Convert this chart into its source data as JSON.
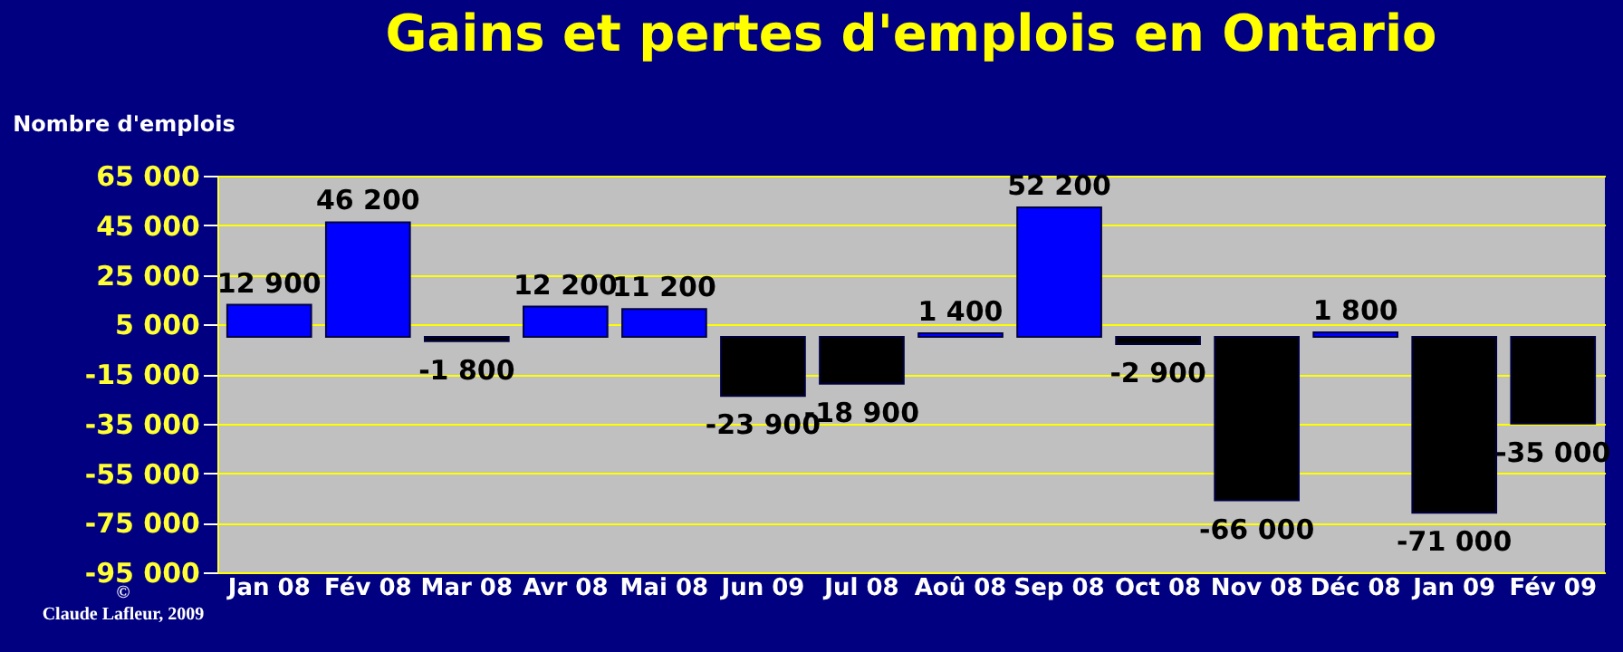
{
  "chart_data": {
    "type": "bar",
    "title": "Gains et pertes d'emplois en Ontario",
    "ylabel": "Nombre d'emplois",
    "categories": [
      "Jan 08",
      "Fév 08",
      "Mar 08",
      "Avr 08",
      "Mai 08",
      "Jun 09",
      "Jul 08",
      "Aoû 08",
      "Sep 08",
      "Oct 08",
      "Nov 08",
      "Déc 08",
      "Jan 09",
      "Fév 09"
    ],
    "values": [
      12900,
      46200,
      -1800,
      12200,
      11200,
      -23900,
      -18900,
      1400,
      52200,
      -2900,
      -66000,
      1800,
      -71000,
      -35000
    ],
    "value_labels": [
      "12 900",
      "46 200",
      "-1 800",
      "12 200",
      "11 200",
      "-23 900",
      "-18 900",
      "1 400",
      "52 200",
      "-2 900",
      "-66 000",
      "1 800",
      "-71 000",
      "-35 000"
    ],
    "colors": [
      "#0000ff",
      "#0000ff",
      "#000000",
      "#0000ff",
      "#0000ff",
      "#000000",
      "#000000",
      "#0000ff",
      "#0000ff",
      "#000000",
      "#000000",
      "#0000ff",
      "#000000",
      "#000000"
    ],
    "ylim": [
      -95000,
      65000
    ],
    "yticks": [
      {
        "value": 65000,
        "label": "65 000"
      },
      {
        "value": 45000,
        "label": "45 000"
      },
      {
        "value": 25000,
        "label": "25 000"
      },
      {
        "value": 5000,
        "label": "5 000"
      },
      {
        "value": -15000,
        "label": "-15 000"
      },
      {
        "value": -35000,
        "label": "-35 000"
      },
      {
        "value": -55000,
        "label": "-55 000"
      },
      {
        "value": -75000,
        "label": "-75 000"
      },
      {
        "value": -95000,
        "label": "-95 000"
      }
    ],
    "grid": "y",
    "annotations": [
      "© Claude Lafleur, 2009"
    ]
  }
}
